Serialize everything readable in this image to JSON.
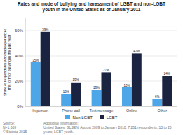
{
  "chart_data": {
    "type": "bar",
    "title": "Rates and mode of bullying and harassment of LGBT and non-LGBT\nyouth in the United States as of January 2011",
    "ylabel": "Share of respondents who had experienced\nthis form of bullying in the past year",
    "categories": [
      "In person",
      "Phone call",
      "Text message",
      "Online",
      "Other"
    ],
    "series": [
      {
        "name": "Non LGBT",
        "color": "#4da6e8",
        "values": [
          35,
          10,
          13,
          15,
          6
        ],
        "value_labels": [
          "35%",
          "10%",
          "13%",
          "15%",
          "6%"
        ]
      },
      {
        "name": "LGBT",
        "color": "#1a2340",
        "values": [
          59,
          19,
          27,
          42,
          24
        ],
        "value_labels": [
          "59%",
          "19%",
          "27%",
          "42%",
          "24%"
        ]
      }
    ],
    "ylim": [
      0,
      70
    ],
    "yticks": [
      {
        "value": 0,
        "label": "0%"
      },
      {
        "value": 20,
        "label": "20%"
      },
      {
        "value": 40,
        "label": "40%"
      },
      {
        "value": 60,
        "label": "60%"
      }
    ],
    "grid": true,
    "legend": "bottom",
    "data_labels": true,
    "annotations": [
      "Source:\nN=1,669\n© Statista 2015",
      "Additional Information:\nUnited States; GLSEN; August 2009 to January 2010; 7,261 respondents; 13 to 20 years; LGBT youth."
    ]
  }
}
